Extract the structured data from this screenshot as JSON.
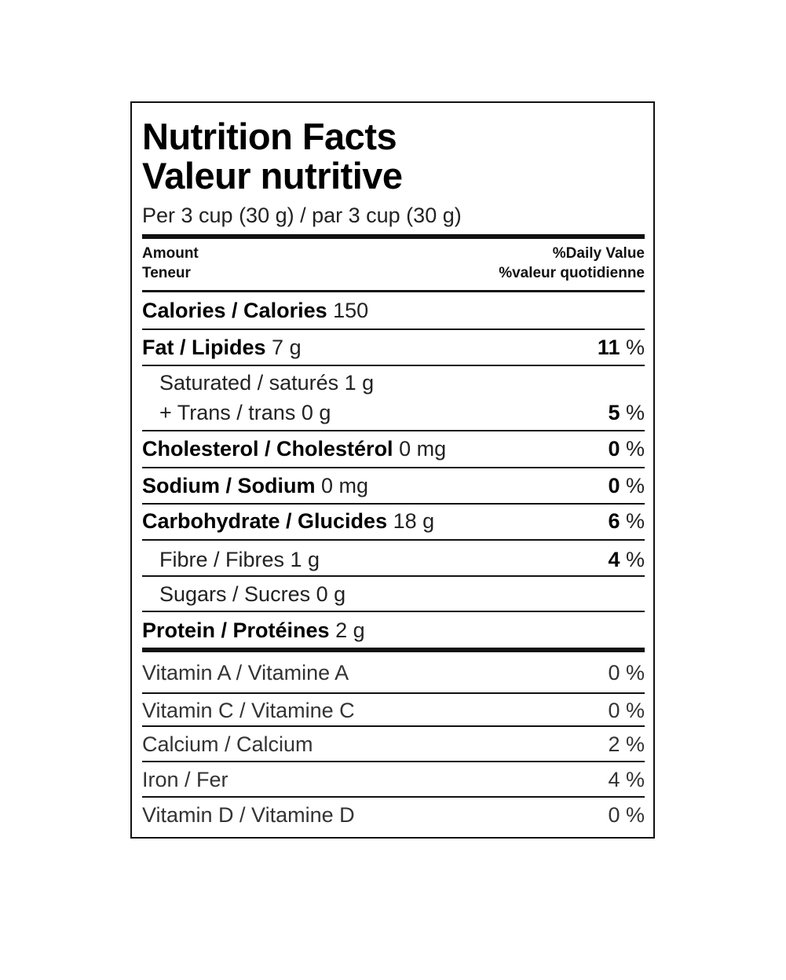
{
  "title_en": "Nutrition Facts",
  "title_fr": "Valeur nutritive",
  "serving": "Per 3 cup (30 g) / par 3 cup (30 g)",
  "header": {
    "amount_en": "Amount",
    "amount_fr": "Teneur",
    "dv_en": "%Daily Value",
    "dv_fr": "%valeur quotidienne"
  },
  "calories": {
    "label": "Calories / Calories",
    "value": "150"
  },
  "fat": {
    "label": "Fat / Lipides",
    "amount": "7 g",
    "pct": "11",
    "unit": "%"
  },
  "saturated": {
    "label": "Saturated / saturés 1 g"
  },
  "trans": {
    "label": "+ Trans / trans 0 g",
    "pct": "5",
    "unit": "%"
  },
  "cholesterol": {
    "label": "Cholesterol / Cholestérol",
    "amount": "0 mg",
    "pct": "0",
    "unit": "%"
  },
  "sodium": {
    "label": "Sodium / Sodium",
    "amount": "0 mg",
    "pct": "0",
    "unit": "%"
  },
  "carbohydrate": {
    "label": "Carbohydrate / Glucides",
    "amount": "18 g",
    "pct": "6",
    "unit": "%"
  },
  "fibre": {
    "label": "Fibre / Fibres 1 g",
    "pct": "4",
    "unit": "%"
  },
  "sugars": {
    "label": "Sugars / Sucres 0 g"
  },
  "protein": {
    "label": "Protein / Protéines",
    "amount": "2 g"
  },
  "vitamins": [
    {
      "label": "Vitamin A / Vitamine A",
      "pct": "0 %"
    },
    {
      "label": "Vitamin C / Vitamine C",
      "pct": "0 %"
    },
    {
      "label": "Calcium / Calcium",
      "pct": "2 %"
    },
    {
      "label": "Iron / Fer",
      "pct": "4 %"
    },
    {
      "label": "Vitamin D / Vitamine D",
      "pct": "0 %"
    }
  ]
}
